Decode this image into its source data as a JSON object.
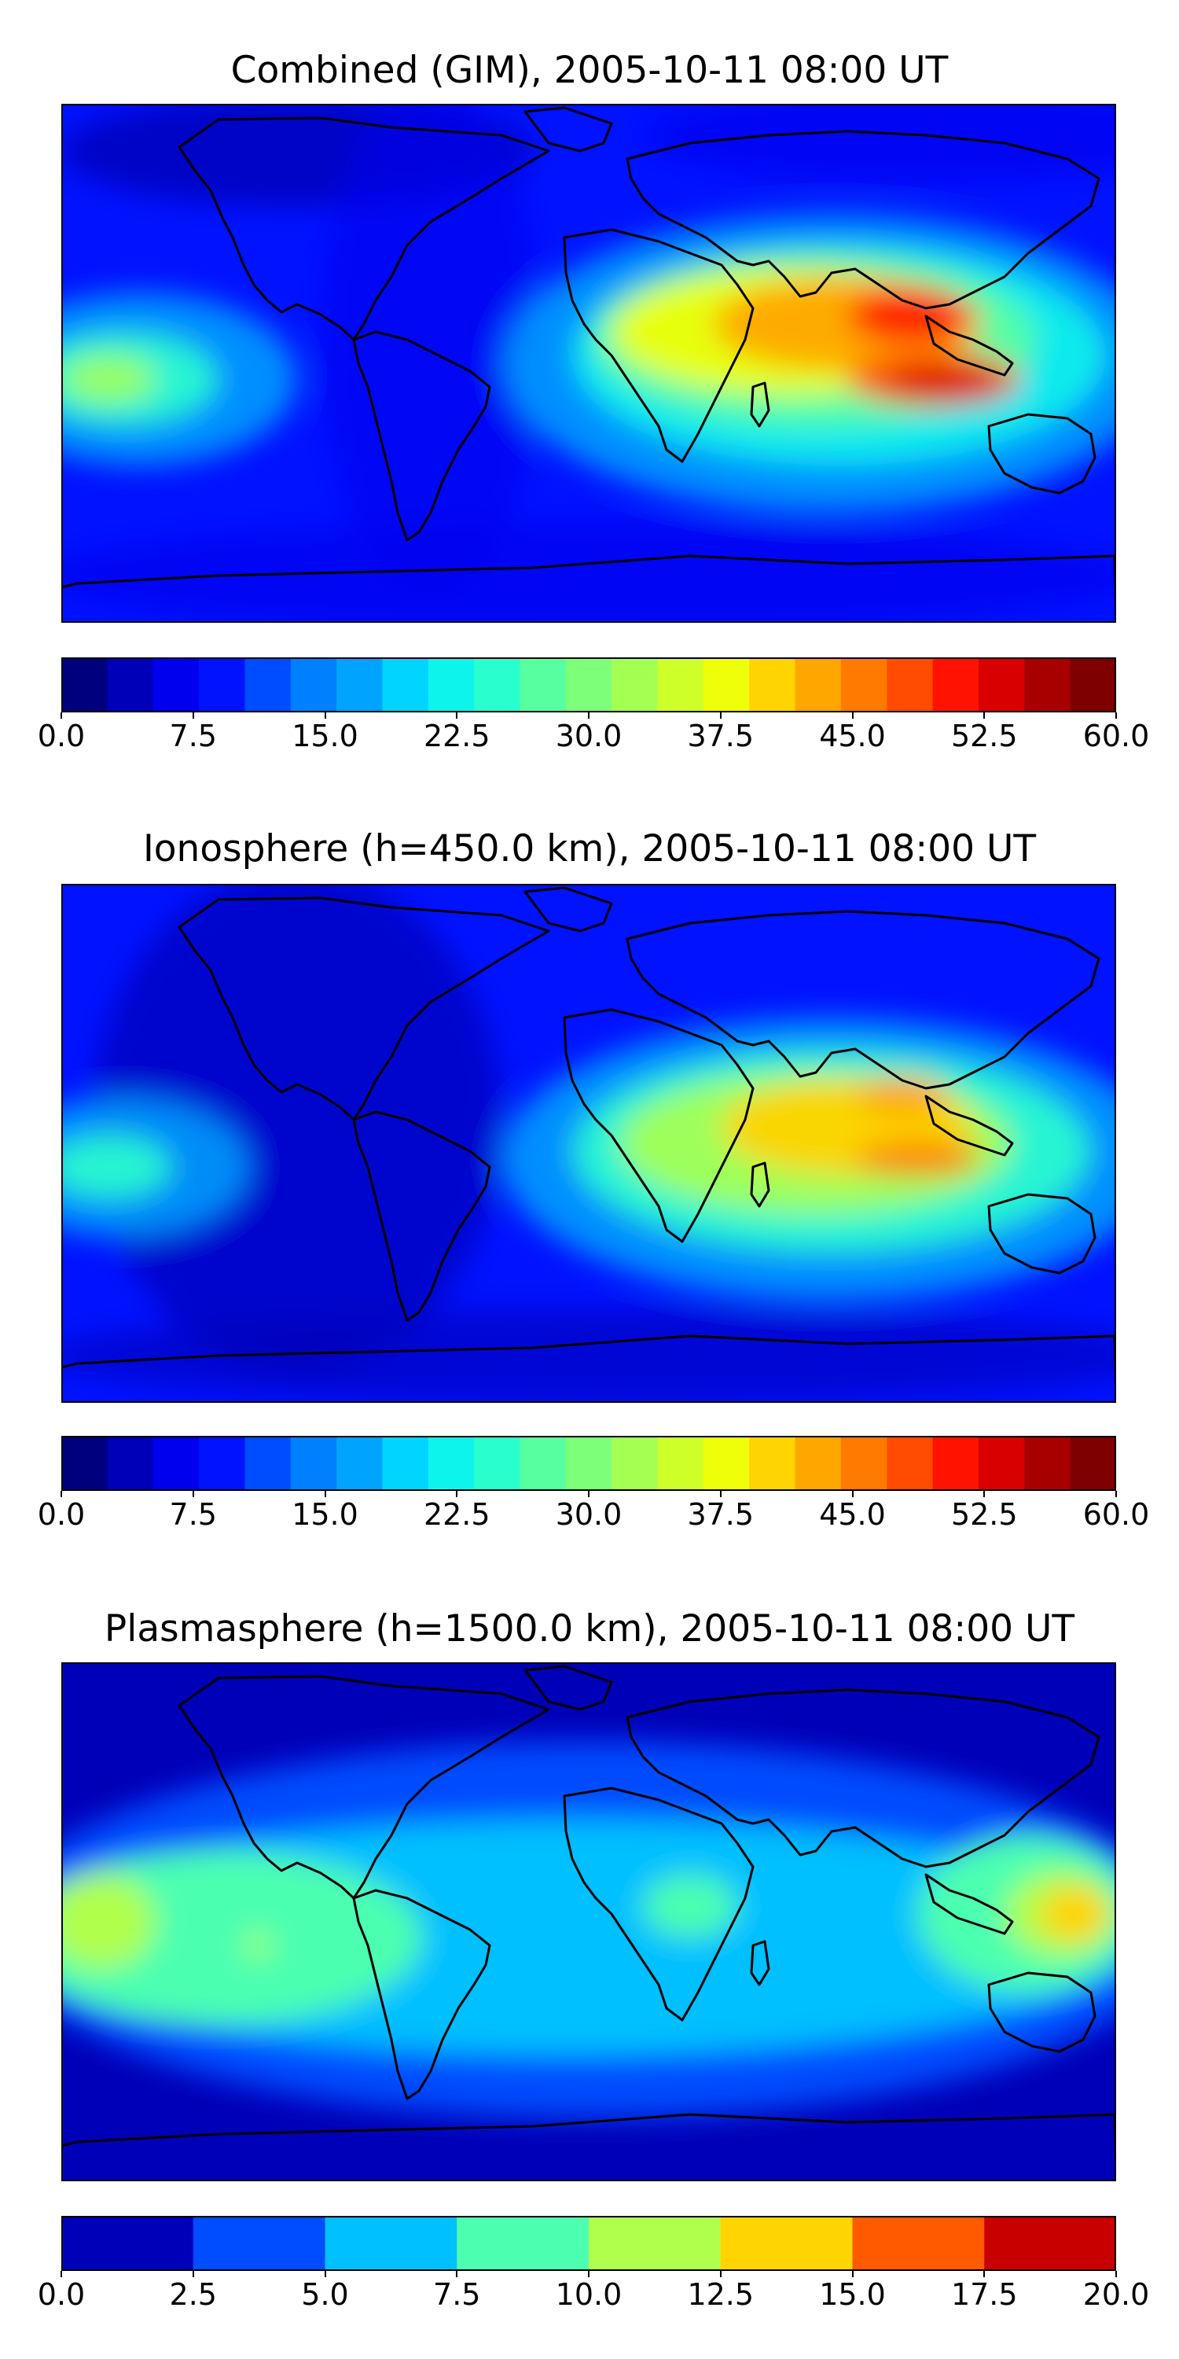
{
  "panels": [
    {
      "title": "Combined (GIM), 2005-10-11 08:00 UT",
      "colorbar": {
        "min": 0,
        "max": 60,
        "colors": [
          "#00007f",
          "#0000b8",
          "#0000ee",
          "#0012ff",
          "#004cff",
          "#0080ff",
          "#00a4ff",
          "#00d4ff",
          "#0cf4eb",
          "#29ffce",
          "#56ffa0",
          "#7dff7a",
          "#a4ff53",
          "#ceff29",
          "#eeff09",
          "#ffd400",
          "#ffa700",
          "#ff7a00",
          "#ff4c00",
          "#ff1300",
          "#d80000",
          "#a80000",
          "#7f0000"
        ],
        "tick_labels": [
          "0.0",
          "7.5",
          "15.0",
          "22.5",
          "30.0",
          "37.5",
          "45.0",
          "52.5",
          "60.0"
        ]
      }
    },
    {
      "title": "Ionosphere  (h=450.0 km), 2005-10-11 08:00 UT",
      "colorbar": {
        "min": 0,
        "max": 60,
        "colors": [
          "#00007f",
          "#0000b8",
          "#0000ee",
          "#0012ff",
          "#004cff",
          "#0080ff",
          "#00a4ff",
          "#00d4ff",
          "#0cf4eb",
          "#29ffce",
          "#56ffa0",
          "#7dff7a",
          "#a4ff53",
          "#ceff29",
          "#eeff09",
          "#ffd400",
          "#ffa700",
          "#ff7a00",
          "#ff4c00",
          "#ff1300",
          "#d80000",
          "#a80000",
          "#7f0000"
        ],
        "tick_labels": [
          "0.0",
          "7.5",
          "15.0",
          "22.5",
          "30.0",
          "37.5",
          "45.0",
          "52.5",
          "60.0"
        ]
      }
    },
    {
      "title": "Plasmasphere (h=1500.0 km), 2005-10-11 08:00 UT",
      "colorbar": {
        "min": 0,
        "max": 20,
        "colors": [
          "#0000b8",
          "#004cff",
          "#00c0ff",
          "#4cffb0",
          "#b0ff4c",
          "#ffd400",
          "#ff5a00",
          "#c80000"
        ],
        "tick_labels": [
          "0.0",
          "2.5",
          "5.0",
          "7.5",
          "10.0",
          "12.5",
          "15.0",
          "17.5",
          "20.0"
        ]
      }
    }
  ]
}
